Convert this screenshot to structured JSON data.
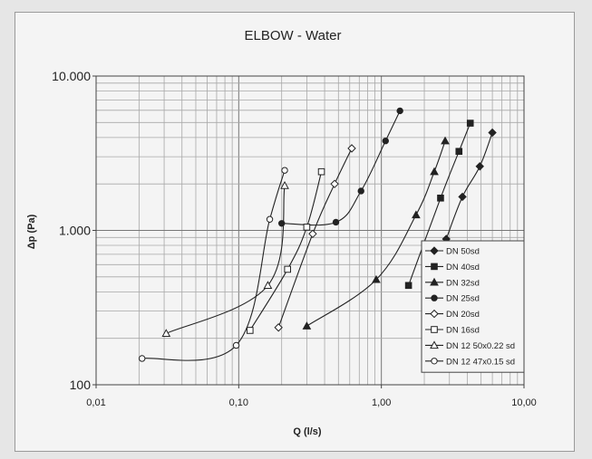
{
  "chart_data": {
    "type": "line",
    "title": "ELBOW - Water",
    "xlabel": "Q (l/s)",
    "ylabel": "Δp (Pa)",
    "x_scale": "log",
    "y_scale": "log",
    "xlim": [
      0.01,
      10
    ],
    "ylim": [
      100,
      10000
    ],
    "x_ticks": [
      0.01,
      0.1,
      1,
      10
    ],
    "x_tick_labels": [
      "0,01",
      "0,10",
      "1,00",
      "10,00"
    ],
    "y_ticks": [
      100,
      1000,
      10000
    ],
    "y_tick_labels": [
      "100",
      "1.000",
      "10.000"
    ],
    "grid": true,
    "legend_position": "bottom-right",
    "series": [
      {
        "name": "DN 50sd",
        "marker": "diamond-filled",
        "x": [
          2.85,
          3.7,
          4.9,
          6.0
        ],
        "y": [
          880,
          1650,
          2600,
          4300
        ]
      },
      {
        "name": "DN 40sd",
        "marker": "square-filled",
        "x": [
          1.55,
          2.6,
          3.5,
          4.2
        ],
        "y": [
          440,
          1620,
          3250,
          4950
        ]
      },
      {
        "name": "DN 32sd",
        "marker": "triangle-filled",
        "x": [
          0.3,
          0.92,
          1.75,
          2.35,
          2.8
        ],
        "y": [
          240,
          480,
          1260,
          2400,
          3800
        ]
      },
      {
        "name": "DN 25sd",
        "marker": "circle-filled",
        "x": [
          0.2,
          0.48,
          0.72,
          1.07,
          1.35
        ],
        "y": [
          1110,
          1130,
          1800,
          3800,
          5950
        ]
      },
      {
        "name": "DN 20sd",
        "marker": "diamond-open",
        "x": [
          0.19,
          0.33,
          0.47,
          0.62
        ],
        "y": [
          235,
          950,
          2000,
          3400
        ]
      },
      {
        "name": "DN 16sd",
        "marker": "square-open",
        "x": [
          0.12,
          0.22,
          0.3,
          0.38
        ],
        "y": [
          225,
          560,
          1050,
          2400
        ]
      },
      {
        "name": "DN 12 50x0.22 sd",
        "marker": "triangle-open",
        "x": [
          0.031,
          0.16,
          0.21
        ],
        "y": [
          215,
          440,
          1950
        ]
      },
      {
        "name": "DN 12 47x0.15 sd",
        "marker": "circle-open",
        "x": [
          0.021,
          0.096,
          0.165,
          0.21
        ],
        "y": [
          148,
          180,
          1180,
          2450
        ]
      }
    ]
  }
}
